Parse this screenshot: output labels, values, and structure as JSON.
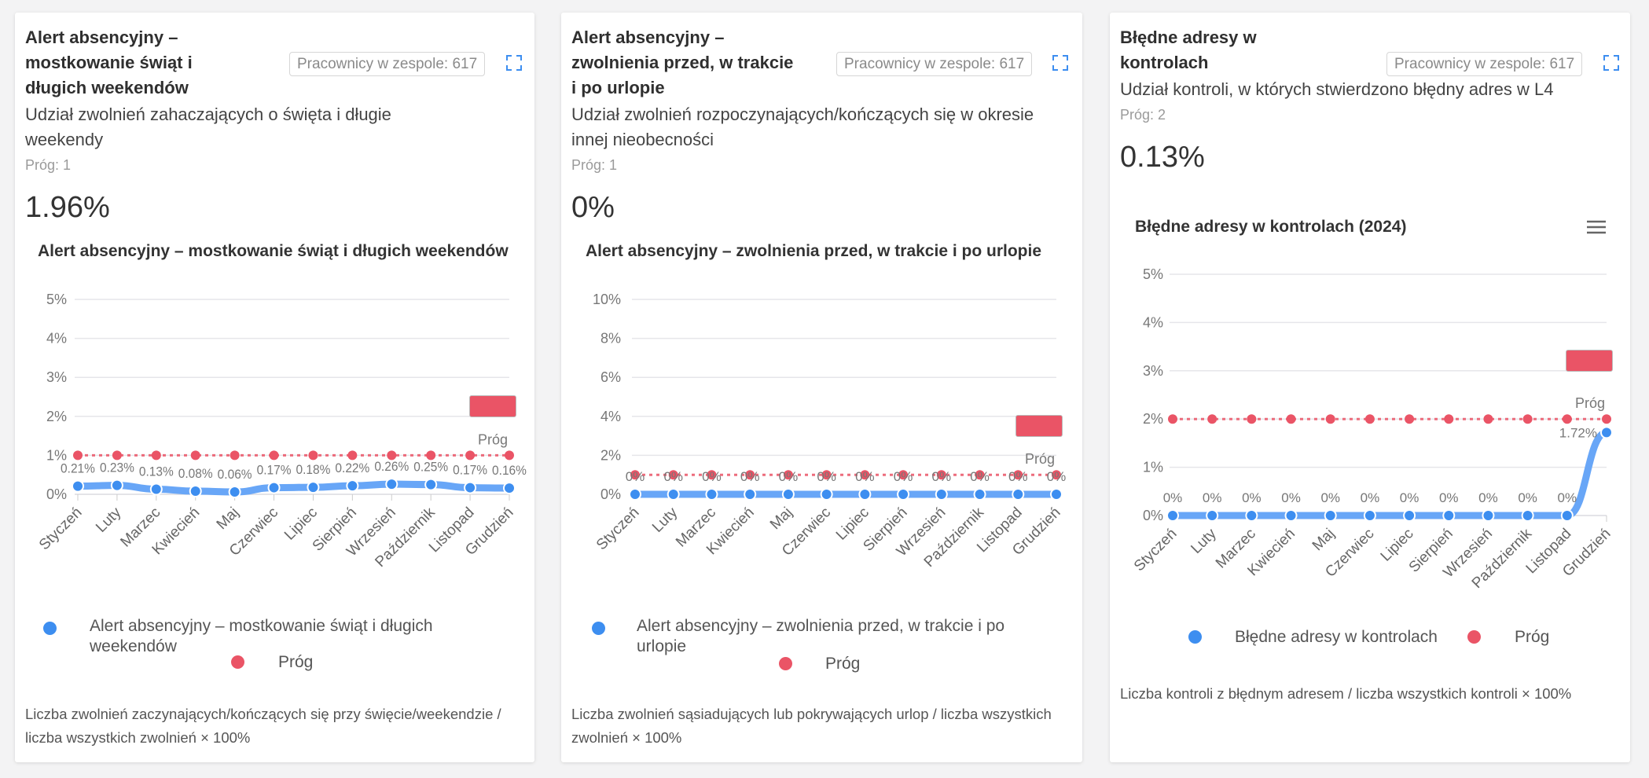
{
  "colors": {
    "series": "#3d8ef0",
    "series_line": "#68a6f7",
    "threshold": "#ea5466"
  },
  "cards": [
    {
      "title": "Alert absencyjny – mostkowanie świąt i długich weekendów",
      "subtitle": "Udział zwolnień zahaczających o święta i długie weekendy",
      "threshold_label": "Próg: 1",
      "value": "1.96%",
      "badge": "Pracownicy w zespole: 617",
      "footer": "Liczba zwolnień zaczynających/kończących się przy święcie/weekendzie / liczba wszystkich zwolnień × 100%"
    },
    {
      "title": "Alert absencyjny – zwolnienia przed, w trakcie i po urlopie",
      "subtitle": "Udział zwolnień rozpoczynających/kończących się w okresie innej nieobecności",
      "threshold_label": "Próg: 1",
      "value": "0%",
      "badge": "Pracownicy w zespole: 617",
      "footer": "Liczba zwolnień sąsiadujących lub pokrywających urlop / liczba wszystkich zwolnień × 100%"
    },
    {
      "title": "Błędne adresy w kontrolach",
      "subtitle": "Udział kontroli, w których stwierdzono błędny adres w L4",
      "threshold_label": "Próg: 2",
      "value": "0.13%",
      "badge": "Pracownicy w zespole: 617",
      "footer": "Liczba kontroli z błędnym adresem / liczba wszystkich kontroli × 100%"
    }
  ],
  "chart_data": [
    {
      "type": "line",
      "title": "Alert absencyjny – mostkowanie świąt i długich weekendów",
      "categories": [
        "Styczeń",
        "Luty",
        "Marzec",
        "Kwiecień",
        "Maj",
        "Czerwiec",
        "Lipiec",
        "Sierpień",
        "Wrzesień",
        "Październik",
        "Listopad",
        "Grudzień"
      ],
      "yticks": [
        "0%",
        "1%",
        "2%",
        "3%",
        "4%",
        "5%"
      ],
      "ylim": [
        0,
        5
      ],
      "series": [
        {
          "name": "Alert absencyjny – mostkowanie świąt i długich weekendów",
          "values": [
            0.21,
            0.23,
            0.13,
            0.08,
            0.06,
            0.17,
            0.18,
            0.22,
            0.26,
            0.25,
            0.17,
            0.16
          ],
          "labels": [
            "0.21%",
            "0.23%",
            "0.13%",
            "0.08%",
            "0.06%",
            "0.17%",
            "0.18%",
            "0.22%",
            "0.26%",
            "0.25%",
            "0.17%",
            "0.16%"
          ]
        },
        {
          "name": "Próg",
          "values": [
            1,
            1,
            1,
            1,
            1,
            1,
            1,
            1,
            1,
            1,
            1,
            1
          ]
        }
      ],
      "threshold_annotation": "Próg",
      "legend": "bottom"
    },
    {
      "type": "line",
      "title": "Alert absencyjny – zwolnienia przed, w trakcie i po urlopie",
      "categories": [
        "Styczeń",
        "Luty",
        "Marzec",
        "Kwiecień",
        "Maj",
        "Czerwiec",
        "Lipiec",
        "Sierpień",
        "Wrzesień",
        "Październik",
        "Listopad",
        "Grudzień"
      ],
      "yticks": [
        "0%",
        "2%",
        "4%",
        "6%",
        "8%",
        "10%"
      ],
      "ylim": [
        0,
        10
      ],
      "series": [
        {
          "name": "Alert absencyjny – zwolnienia przed, w trakcie i po urlopie",
          "values": [
            0,
            0,
            0,
            0,
            0,
            0,
            0,
            0,
            0,
            0,
            0,
            0
          ],
          "labels": [
            "0%",
            "0%",
            "0%",
            "0%",
            "0%",
            "0%",
            "0%",
            "0%",
            "0%",
            "0%",
            "0%",
            "0%"
          ]
        },
        {
          "name": "Próg",
          "values": [
            1,
            1,
            1,
            1,
            1,
            1,
            1,
            1,
            1,
            1,
            1,
            1
          ]
        }
      ],
      "threshold_annotation": "Próg",
      "legend": "bottom"
    },
    {
      "type": "line",
      "title": "Błędne adresy w kontrolach (2024)",
      "categories": [
        "Styczeń",
        "Luty",
        "Marzec",
        "Kwiecień",
        "Maj",
        "Czerwiec",
        "Lipiec",
        "Sierpień",
        "Wrzesień",
        "Październik",
        "Listopad",
        "Grudzień"
      ],
      "yticks": [
        "0%",
        "1%",
        "2%",
        "3%",
        "4%",
        "5%"
      ],
      "ylim": [
        0,
        5
      ],
      "series": [
        {
          "name": "Błędne adresy w kontrolach",
          "values": [
            0,
            0,
            0,
            0,
            0,
            0,
            0,
            0,
            0,
            0,
            0,
            1.72
          ],
          "labels": [
            "0%",
            "0%",
            "0%",
            "0%",
            "0%",
            "0%",
            "0%",
            "0%",
            "0%",
            "0%",
            "0%",
            "1.72%"
          ]
        },
        {
          "name": "Próg",
          "values": [
            2,
            2,
            2,
            2,
            2,
            2,
            2,
            2,
            2,
            2,
            2,
            2
          ]
        }
      ],
      "threshold_annotation": "Próg",
      "legend": "bottom",
      "menu_icon": "hamburger-menu-icon"
    }
  ]
}
